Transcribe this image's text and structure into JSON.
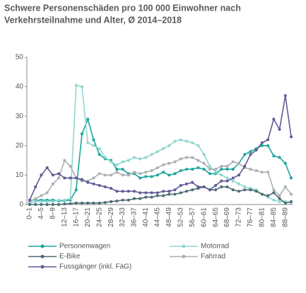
{
  "chart_data": {
    "type": "line",
    "title": [
      "Schwere Personenschäden pro 100 000 Einwohner nach",
      "Verkehrsteilnahme und Alter, Ø 2014–2018"
    ],
    "categories": [
      "0–1",
      null,
      "4–5",
      null,
      "8–9",
      null,
      "12–13",
      null,
      "16–17",
      null,
      "20–21",
      null,
      "24–25",
      null,
      "28–29",
      null,
      "32–33",
      null,
      "36–37",
      null,
      "40–41",
      null,
      "44–45",
      null,
      "48–49",
      null,
      "52–53",
      null,
      "56–57",
      null,
      "60–61",
      null,
      "64–65",
      null,
      "68–69",
      null,
      "72–73",
      null,
      "76–77",
      null,
      "80–81",
      null,
      "84–85",
      null,
      "88–89",
      null
    ],
    "ylim": [
      0,
      50
    ],
    "yticks": [
      0,
      10,
      20,
      30,
      40,
      50
    ],
    "grid": false,
    "series": [
      {
        "name": "Personenwagen",
        "color": "#1aa59a",
        "values": [
          1.5,
          1.5,
          1.5,
          1.5,
          1.5,
          1.2,
          1.3,
          1.5,
          5,
          24,
          29,
          22,
          17,
          15.5,
          15,
          12,
          12,
          10.5,
          10.5,
          9,
          9.5,
          9.5,
          10,
          11,
          10,
          10.5,
          11.5,
          12,
          12,
          12.5,
          12,
          10.5,
          10.5,
          12,
          12,
          12,
          14,
          17,
          18,
          19,
          20,
          20,
          16.5,
          16,
          14,
          9
        ]
      },
      {
        "name": "Motorrad",
        "color": "#8fd6d2",
        "values": [
          0.5,
          1,
          1,
          1,
          1,
          1.5,
          1.5,
          2,
          40.5,
          40,
          21,
          20,
          19,
          16,
          14.5,
          13.5,
          14.5,
          15,
          16,
          15.5,
          16,
          17,
          18,
          19,
          20,
          21.5,
          22,
          21.5,
          21,
          20,
          17,
          13,
          11,
          10,
          9,
          8,
          7,
          6,
          5.5,
          5,
          3.5,
          2.5,
          1.5,
          1,
          1,
          0.5
        ]
      },
      {
        "name": "E-Bike",
        "color": "#4d6b73",
        "values": [
          0,
          0,
          0,
          0,
          0,
          0,
          0.2,
          0.3,
          0.5,
          0.5,
          0.5,
          0.5,
          0.5,
          0.7,
          1,
          1.2,
          1.5,
          1.5,
          2,
          2,
          2.5,
          2.5,
          3,
          3,
          3.5,
          3.5,
          4,
          4.5,
          5,
          5.5,
          6,
          5,
          5,
          6,
          6,
          5,
          4.5,
          5,
          5,
          4.5,
          3.5,
          3,
          4,
          2,
          0.5,
          1
        ]
      },
      {
        "name": "Fahrrad",
        "color": "#a9b0b2",
        "values": [
          1,
          2,
          3,
          4,
          7,
          9,
          15,
          13,
          9,
          8,
          8,
          9,
          10.5,
          10,
          10,
          11,
          10,
          10,
          11,
          10.5,
          11,
          11.5,
          12.5,
          13.5,
          14,
          14.5,
          15.5,
          16,
          16,
          15,
          14,
          12,
          12,
          13,
          13,
          14.5,
          14,
          12.5,
          12,
          11.5,
          11,
          11,
          5,
          3,
          6,
          3.5
        ]
      },
      {
        "name": "Fussgänger (inkl. FäG)",
        "color": "#5e5b96",
        "values": [
          1.5,
          6,
          10,
          12.5,
          10,
          10.5,
          9,
          9,
          9,
          8.5,
          7.5,
          7,
          6.5,
          6,
          5.5,
          4.5,
          4.5,
          4.5,
          4.5,
          4,
          4,
          4,
          4,
          4.5,
          4.5,
          5,
          6.5,
          7,
          7.5,
          6,
          6,
          5,
          6.5,
          8,
          8,
          9,
          10,
          13,
          17,
          18.5,
          21,
          22,
          29,
          25.5,
          37,
          23
        ]
      }
    ]
  }
}
